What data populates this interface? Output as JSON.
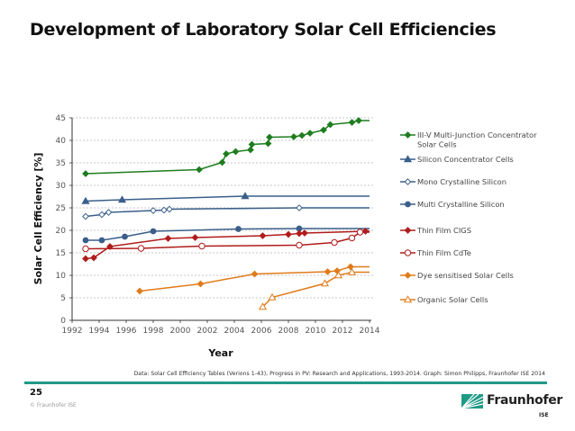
{
  "page": {
    "title": "Development of Laboratory Solar Cell Efficiencies",
    "source": "Data: Solar Cell Efficiency Tables (Verions 1-43), Progress in PV: Research and Applications, 1993-2014.  Graph: Simon Philipps, Fraunhofer ISE 2014",
    "page_number": "25",
    "copyright": "© Fraunhofer ISE",
    "logo_text": "Fraunhofer",
    "logo_sub": "ISE",
    "accent_color": "#1f9a86"
  },
  "chart_data": {
    "type": "line",
    "title": "Development of Laboratory Solar Cell Efficiencies",
    "xlabel": "Year",
    "ylabel": "Solar Cell Efficiency [%]",
    "xlim": [
      1992,
      2014
    ],
    "ylim": [
      0,
      45
    ],
    "xticks": [
      "1992",
      "1994",
      "1996",
      "1998",
      "2000",
      "2002",
      "2004",
      "2006",
      "2008",
      "2010",
      "2012",
      "2014"
    ],
    "yticks": [
      "0",
      "5",
      "10",
      "15",
      "20",
      "25",
      "30",
      "35",
      "40",
      "45"
    ],
    "grid": "horizontal-dashed",
    "legend_position": "right",
    "series": [
      {
        "name": "III-V Multi-Junction Concentrator Solar Cells",
        "color": "#1e7d1e",
        "marker": "diamond-filled",
        "points": [
          [
            1993,
            32.6
          ],
          [
            2001.4,
            33.5
          ],
          [
            2003.1,
            35.1
          ],
          [
            2003.4,
            37.0
          ],
          [
            2004.1,
            37.5
          ],
          [
            2005.2,
            37.9
          ],
          [
            2005.3,
            39.1
          ],
          [
            2006.5,
            39.3
          ],
          [
            2006.6,
            40.7
          ],
          [
            2008.4,
            40.8
          ],
          [
            2009.0,
            41.1
          ],
          [
            2009.6,
            41.6
          ],
          [
            2010.6,
            42.3
          ],
          [
            2011.1,
            43.5
          ],
          [
            2012.7,
            44.0
          ],
          [
            2013.2,
            44.4
          ]
        ],
        "extend_to": 2014
      },
      {
        "name": "Silicon Concentrator Cells",
        "color": "#3a5f8a",
        "marker": "triangle-filled",
        "points": [
          [
            1993,
            26.5
          ],
          [
            1995.7,
            26.8
          ],
          [
            2004.8,
            27.6
          ]
        ],
        "extend_to": 2014
      },
      {
        "name": "Mono Crystalline Silicon",
        "color": "#3a5f8a",
        "marker": "diamond-open",
        "points": [
          [
            1993,
            23.1
          ],
          [
            1994.2,
            23.5
          ],
          [
            1994.7,
            24.0
          ],
          [
            1998.0,
            24.4
          ],
          [
            1998.8,
            24.5
          ],
          [
            1999.2,
            24.7
          ],
          [
            2008.8,
            25.0
          ]
        ],
        "extend_to": 2014
      },
      {
        "name": "Multi Crystalline Silicon",
        "color": "#3a5f8a",
        "marker": "circle-filled",
        "points": [
          [
            1993,
            17.8
          ],
          [
            1994.2,
            17.8
          ],
          [
            1995.9,
            18.6
          ],
          [
            1998.0,
            19.8
          ],
          [
            2004.3,
            20.3
          ],
          [
            2008.8,
            20.4
          ]
        ],
        "extend_to": 2014
      },
      {
        "name": "Thin Film CIGS",
        "color": "#b01c1c",
        "marker": "diamond-filled",
        "points": [
          [
            1993,
            13.7
          ],
          [
            1993.6,
            13.9
          ],
          [
            1994.8,
            16.4
          ],
          [
            1999.1,
            18.2
          ],
          [
            2001.1,
            18.4
          ],
          [
            2006.1,
            18.8
          ],
          [
            2008.0,
            19.1
          ],
          [
            2008.8,
            19.3
          ],
          [
            2009.2,
            19.4
          ],
          [
            2013.7,
            19.8
          ]
        ],
        "extend_to": 2014
      },
      {
        "name": "Thin Film CdTe",
        "color": "#b01c1c",
        "marker": "circle-open",
        "points": [
          [
            1993,
            15.9
          ],
          [
            1997.1,
            16.0
          ],
          [
            2001.6,
            16.5
          ],
          [
            2008.8,
            16.7
          ],
          [
            2011.4,
            17.3
          ],
          [
            2012.7,
            18.3
          ],
          [
            2013.3,
            19.6
          ]
        ],
        "extend_to": 2014
      },
      {
        "name": "Dye sensitised Solar Cells",
        "color": "#e07b1a",
        "marker": "diamond-filled",
        "points": [
          [
            1997,
            6.5
          ],
          [
            2001.5,
            8.1
          ],
          [
            2005.5,
            10.3
          ],
          [
            2010.9,
            10.8
          ],
          [
            2011.6,
            11.0
          ],
          [
            2012.6,
            11.9
          ]
        ],
        "extend_to": 2014
      },
      {
        "name": "Organic Solar Cells",
        "color": "#e07b1a",
        "marker": "triangle-open",
        "points": [
          [
            2006.1,
            3.0
          ],
          [
            2006.8,
            5.1
          ],
          [
            2010.7,
            8.2
          ],
          [
            2011.7,
            10.0
          ],
          [
            2012.7,
            10.7
          ]
        ],
        "extend_to": 2014
      }
    ],
    "legend": [
      [
        "III-V Multi-Junction Concentrator",
        "Solar Cells"
      ],
      [
        "Silicon Concentrator Cells"
      ],
      [
        "Mono Crystalline Silicon"
      ],
      [
        "Multi Crystalline Silicon"
      ],
      [
        "Thin Film CIGS"
      ],
      [
        "Thin Film CdTe"
      ],
      [
        "Dye sensitised Solar Cells"
      ],
      [
        "Organic Solar Cells"
      ]
    ]
  }
}
